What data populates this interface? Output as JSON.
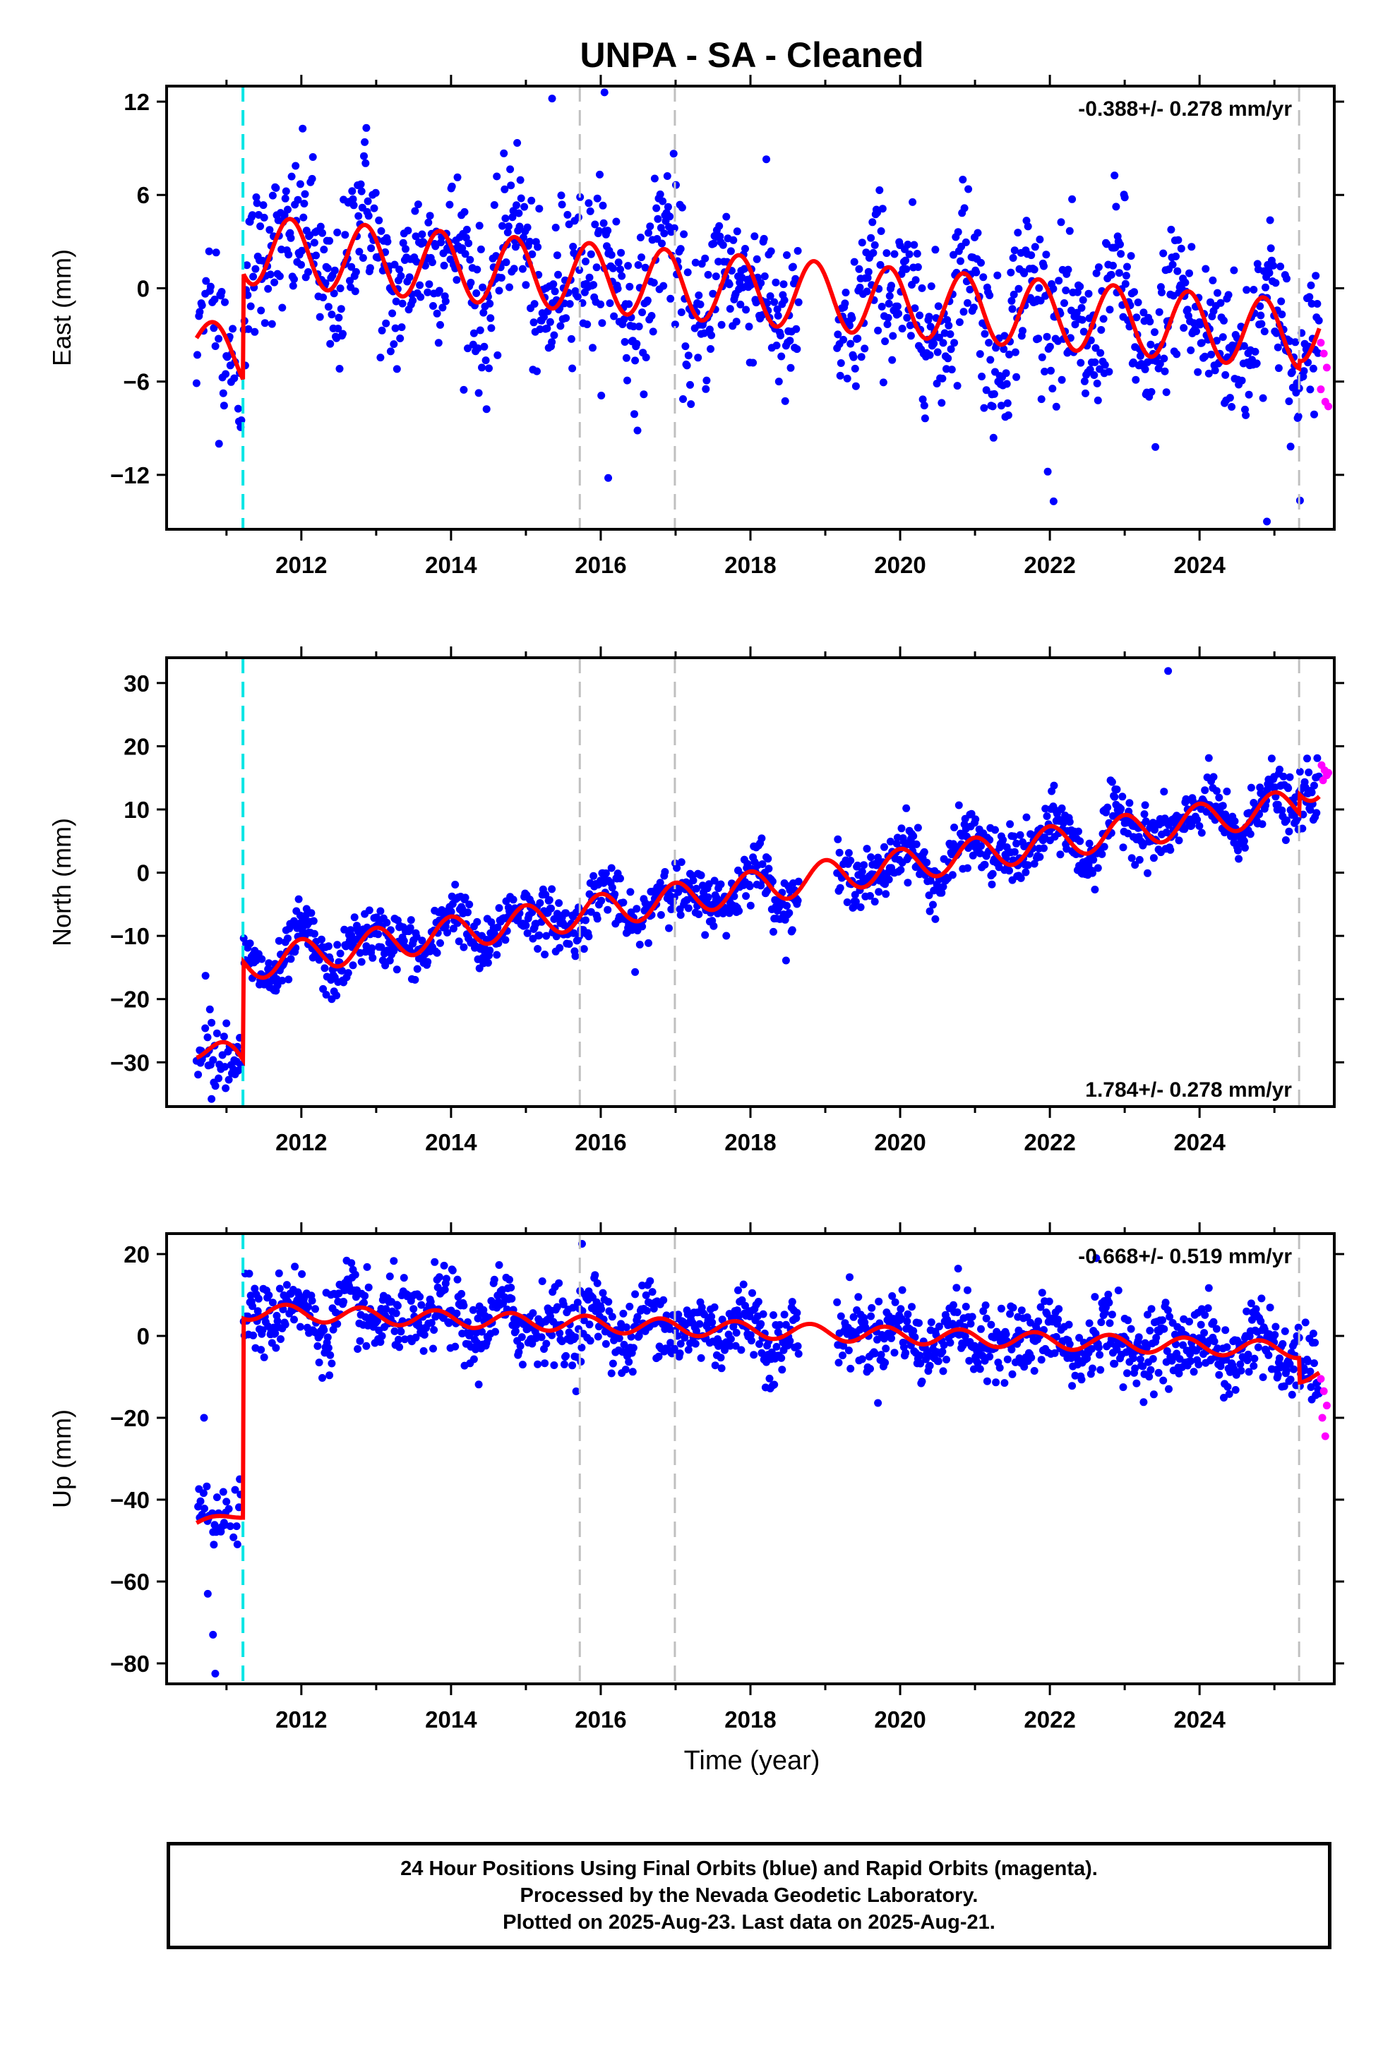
{
  "chart_data": {
    "type": "scatter",
    "title": "UNPA  - SA - Cleaned",
    "xlabel": "Time (year)",
    "x_ticks": [
      2012,
      2014,
      2016,
      2018,
      2020,
      2022,
      2024
    ],
    "xlim": [
      2010.2,
      2025.8
    ],
    "colors": {
      "final": "#0000ff",
      "rapid": "#ff00ff",
      "model": "#ff0000",
      "equipment_change": "#00e5e5",
      "event": "#c0c0c0"
    },
    "legend": "none",
    "grid": false,
    "vertical_lines": {
      "equipment_change": [
        2011.22
      ],
      "events": [
        2015.72,
        2016.99,
        2025.33
      ]
    },
    "data_gap": [
      2018.65,
      2019.15
    ],
    "panels": [
      {
        "name": "East",
        "ylabel": "East (mm)",
        "ylim": [
          -15.5,
          13
        ],
        "y_ticks": [
          12,
          6,
          0,
          -6,
          -12
        ],
        "rate": "-0.388+/- 0.278 mm/yr",
        "rate_position": "top-right",
        "model": {
          "offset_before": -3.2,
          "trend_before": -2.5,
          "annual_amp_before": 1.6,
          "start": 2.5,
          "rate": -0.388,
          "annual_amp": 2.2,
          "annual_phase": 0.6,
          "scatter": 2.5,
          "end_step": 0.5
        },
        "outliers": [
          [
            2015.35,
            12.2
          ],
          [
            2016.05,
            12.6
          ],
          [
            2010.9,
            -10.0
          ],
          [
            2016.1,
            -12.2
          ],
          [
            2024.9,
            -15.0
          ],
          [
            2022.05,
            -13.7
          ]
        ],
        "rapid": [
          [
            2025.62,
            -3.5
          ],
          [
            2025.66,
            -4.2
          ],
          [
            2025.7,
            -5.1
          ],
          [
            2025.62,
            -6.5
          ],
          [
            2025.68,
            -7.3
          ],
          [
            2025.72,
            -7.6
          ]
        ]
      },
      {
        "name": "North",
        "ylabel": "North (mm)",
        "ylim": [
          -37,
          34
        ],
        "y_ticks": [
          30,
          20,
          10,
          0,
          -10,
          -20,
          -30
        ],
        "rate": "1.784+/- 0.278 mm/yr",
        "rate_position": "bottom-right",
        "model": {
          "offset_before": -27.5,
          "trend_before": -4.0,
          "annual_amp_before": 2.2,
          "start": -14.5,
          "rate": 1.784,
          "annual_amp": 2.6,
          "annual_phase": 0.75,
          "scatter": 2.2,
          "end_step": 3.0
        },
        "outliers": [
          [
            2023.58,
            31.9
          ],
          [
            2010.8,
            -35.8
          ],
          [
            2010.72,
            -16.3
          ]
        ],
        "rapid": [
          [
            2025.63,
            17.0
          ],
          [
            2025.67,
            16.2
          ],
          [
            2025.7,
            15.4
          ],
          [
            2025.65,
            14.6
          ],
          [
            2025.72,
            15.8
          ]
        ]
      },
      {
        "name": "Up",
        "ylabel": "Up (mm)",
        "ylim": [
          -85,
          25
        ],
        "y_ticks": [
          20,
          0,
          -20,
          -40,
          -60,
          -80
        ],
        "rate": "-0.668+/- 0.519 mm/yr",
        "rate_position": "top-right",
        "model": {
          "offset_before": -46,
          "trend_before": 4.0,
          "annual_amp_before": 1.0,
          "start": 6.0,
          "rate": -0.668,
          "annual_amp": 2.0,
          "annual_phase": 0.55,
          "scatter": 4.5,
          "end_step": -6.0
        },
        "outliers": [
          [
            2010.85,
            -82.5
          ],
          [
            2010.75,
            -63.0
          ],
          [
            2010.82,
            -73.0
          ],
          [
            2010.7,
            -20.0
          ],
          [
            2015.75,
            22.5
          ],
          [
            2022.62,
            19.0
          ]
        ],
        "rapid": [
          [
            2025.62,
            -10.5
          ],
          [
            2025.66,
            -13.5
          ],
          [
            2025.7,
            -17.0
          ],
          [
            2025.64,
            -20.0
          ],
          [
            2025.68,
            -24.5
          ]
        ]
      }
    ]
  },
  "footer": {
    "line1": "24 Hour Positions Using Final Orbits (blue) and Rapid Orbits (magenta).",
    "line2": "Processed by the Nevada Geodetic Laboratory.",
    "line3": "Plotted on 2025-Aug-23. Last data on 2025-Aug-21."
  }
}
